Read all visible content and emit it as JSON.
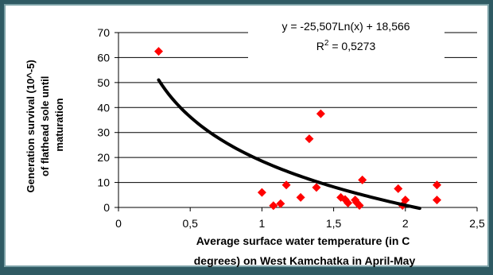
{
  "chart_data": {
    "type": "scatter",
    "title": "",
    "xlabel_lines": [
      "Average surface water temperature (in C",
      "degrees) on West Kamchatka in April-May"
    ],
    "ylabel_lines": [
      "Generation survival (10^-5)",
      "of flathead sole until",
      "maturation"
    ],
    "xlim": [
      0,
      2.5
    ],
    "ylim": [
      0,
      70
    ],
    "x_ticks": [
      0,
      0.5,
      1,
      1.5,
      2,
      2.5
    ],
    "x_tick_labels": [
      "0",
      "0,5",
      "1",
      "1,5",
      "2",
      "2,5"
    ],
    "y_ticks": [
      0,
      10,
      20,
      30,
      40,
      50,
      60,
      70
    ],
    "y_tick_labels": [
      "0",
      "10",
      "20",
      "30",
      "40",
      "50",
      "60",
      "70"
    ],
    "grid": "horizontal",
    "series": [
      {
        "marker": "diamond",
        "color": "#ff0000",
        "points": [
          {
            "x": 0.28,
            "y": 62.5
          },
          {
            "x": 1.0,
            "y": 6.0
          },
          {
            "x": 1.08,
            "y": 0.7
          },
          {
            "x": 1.13,
            "y": 1.5
          },
          {
            "x": 1.17,
            "y": 9.0
          },
          {
            "x": 1.27,
            "y": 4.0
          },
          {
            "x": 1.33,
            "y": 27.5
          },
          {
            "x": 1.38,
            "y": 8.0
          },
          {
            "x": 1.41,
            "y": 37.5
          },
          {
            "x": 1.55,
            "y": 4.0
          },
          {
            "x": 1.58,
            "y": 3.2
          },
          {
            "x": 1.6,
            "y": 1.8
          },
          {
            "x": 1.65,
            "y": 3.0
          },
          {
            "x": 1.66,
            "y": 2.0
          },
          {
            "x": 1.68,
            "y": 0.8
          },
          {
            "x": 1.7,
            "y": 11.0
          },
          {
            "x": 1.95,
            "y": 7.5
          },
          {
            "x": 1.98,
            "y": 0.8
          },
          {
            "x": 2.0,
            "y": 3.0
          },
          {
            "x": 2.22,
            "y": 9.0
          },
          {
            "x": 2.22,
            "y": 3.0
          }
        ]
      }
    ],
    "trendline": {
      "type": "logarithmic",
      "a": -25.507,
      "b": 18.566,
      "x_from": 0.28,
      "x_to": 2.1,
      "color": "#000000",
      "equation_label": "y = -25,507Ln(x) + 18,566",
      "r2_label_base": "R",
      "r2_label_sup": "2",
      "r2_label_value": " = 0,5273"
    }
  }
}
